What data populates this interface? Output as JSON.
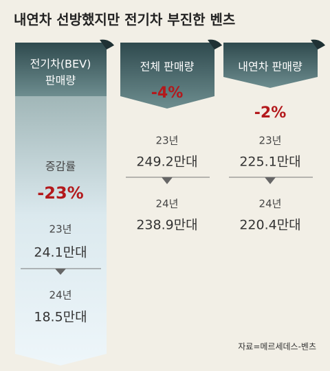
{
  "header": {
    "title": "내연차 선방했지만 전기차 부진한 벤츠"
  },
  "panels": [
    {
      "title_lines": [
        "전기차(BEV)",
        "판매량"
      ],
      "change_label": "증감률",
      "change": "-23%",
      "year1": "23년",
      "value1": "24.1만대",
      "year2": "24년",
      "value2": "18.5만대"
    },
    {
      "title_lines": [
        "전체 판매량"
      ],
      "change": "-4%",
      "year1": "23년",
      "value1": "249.2만대",
      "year2": "24년",
      "value2": "238.9만대"
    },
    {
      "title_lines": [
        "내연차 판매량"
      ],
      "change": "-2%",
      "year1": "23년",
      "value1": "225.1만대",
      "year2": "24년",
      "value2": "220.4만대"
    }
  ],
  "footer": {
    "source": "자료=메르세데스-벤츠"
  }
}
